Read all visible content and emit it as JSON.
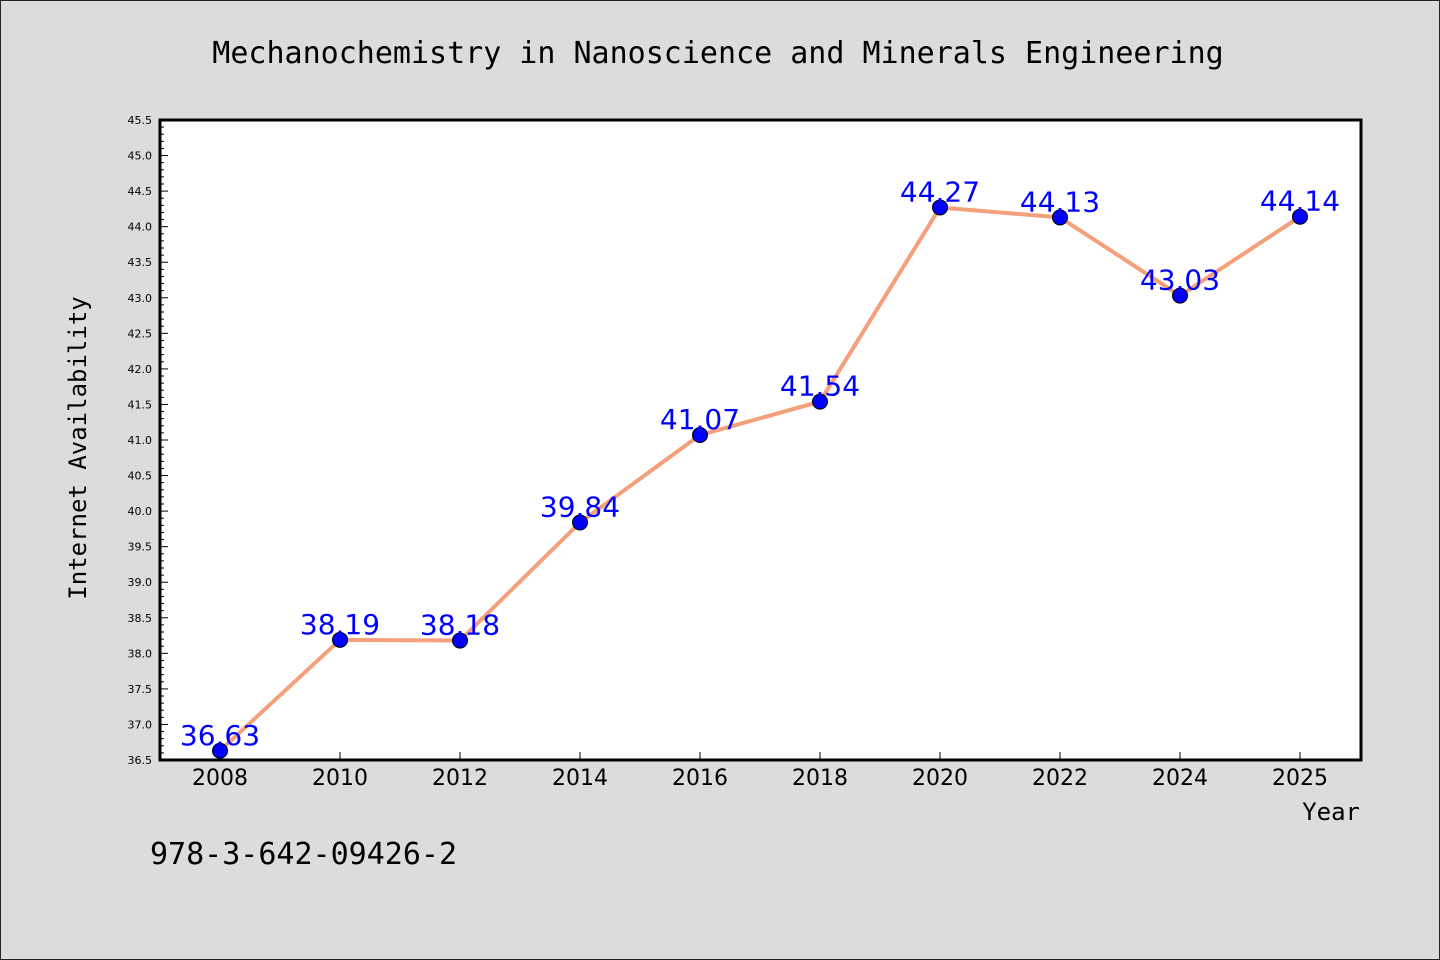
{
  "footer_text": "978-3-642-09426-2",
  "colors": {
    "background": "#dcdcdc",
    "plot_background": "#ffffff",
    "line": "#f4a07a",
    "marker": "#0000ff",
    "data_label": "#0000ff",
    "text": "#000000"
  },
  "chart_data": {
    "type": "line",
    "title": "Mechanochemistry in Nanoscience and Minerals Engineering",
    "xlabel": "Year",
    "ylabel": "Internet Availability",
    "categories": [
      "2008",
      "2010",
      "2012",
      "2014",
      "2016",
      "2018",
      "2020",
      "2022",
      "2024",
      "2025"
    ],
    "series": [
      {
        "values": [
          36.63,
          38.19,
          38.18,
          39.84,
          41.07,
          41.54,
          44.27,
          44.13,
          43.03,
          44.14
        ]
      }
    ],
    "data_labels": [
      "36.63",
      "38.19",
      "38.18",
      "39.84",
      "41.07",
      "41.54",
      "44.27",
      "44.13",
      "43.03",
      "44.14"
    ],
    "ylim": [
      36.5,
      45.5
    ],
    "yticks": [
      "36.5",
      "37.0",
      "37.5",
      "38.0",
      "38.5",
      "39.0",
      "39.5",
      "40.0",
      "40.5",
      "41.0",
      "41.5",
      "42.0",
      "42.5",
      "43.0",
      "43.5",
      "44.0",
      "44.5",
      "45.0",
      "45.5"
    ],
    "grid": false,
    "legend": "none"
  }
}
